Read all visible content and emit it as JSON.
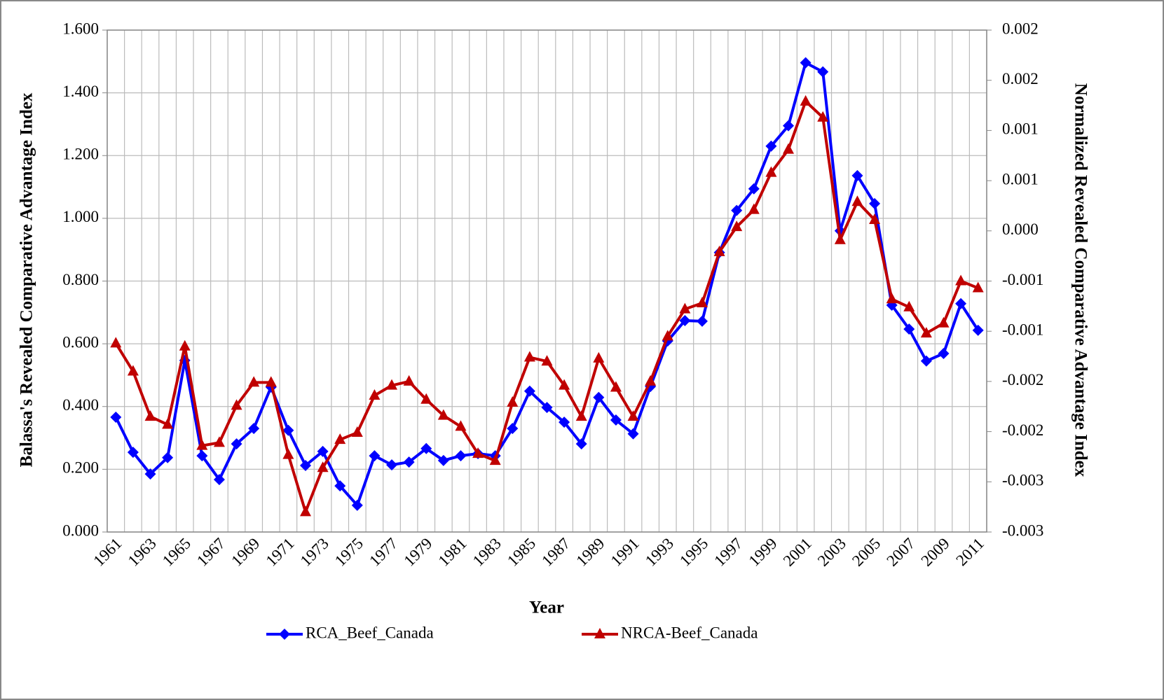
{
  "chart_data": {
    "type": "line",
    "x_label": "Year",
    "y_label": "Balassa's Revealed Comparative Advantage Index",
    "y2_label": "Normalized Revealed Comparative Advantage Index",
    "categories": [
      "1961",
      null,
      "1963",
      null,
      "1965",
      null,
      "1967",
      null,
      "1969",
      null,
      "1971",
      null,
      "1973",
      null,
      "1975",
      null,
      "1977",
      null,
      "1979",
      null,
      "1981",
      null,
      "1983",
      null,
      "1985",
      null,
      "1987",
      null,
      "1989",
      null,
      "1991",
      null,
      "1993",
      null,
      "1995",
      null,
      "1997",
      null,
      "1999",
      null,
      "2001",
      null,
      "2003",
      null,
      "2005",
      null,
      "2007",
      null,
      "2009",
      null,
      "2011"
    ],
    "series": [
      {
        "name": "RCA_Beef_Canada",
        "color": "#0000ff",
        "marker": "diamond",
        "values": [
          0.366,
          0.254,
          0.185,
          0.237,
          0.547,
          0.243,
          0.167,
          0.281,
          0.33,
          0.462,
          0.324,
          0.212,
          0.257,
          0.147,
          0.085,
          0.243,
          0.214,
          0.223,
          0.266,
          0.228,
          0.243,
          0.25,
          0.243,
          0.33,
          0.449,
          0.397,
          0.35,
          0.281,
          0.429,
          0.357,
          0.313,
          0.464,
          0.609,
          0.674,
          0.672,
          0.891,
          1.025,
          1.094,
          1.23,
          1.295,
          1.496,
          1.467,
          0.96,
          1.136,
          1.047,
          0.723,
          0.647,
          0.545,
          0.569,
          0.728,
          0.643
        ]
      },
      {
        "name": "NRCA-Beef_Canada",
        "color": "#c00000",
        "marker": "triangle",
        "axis": "y2",
        "values": [
          -0.00112,
          -0.0014,
          -0.00185,
          -0.00193,
          -0.00115,
          -0.00214,
          -0.00211,
          -0.00174,
          -0.00151,
          -0.00151,
          -0.00223,
          -0.0028,
          -0.00236,
          -0.00208,
          -0.00201,
          -0.00164,
          -0.00154,
          -0.0015,
          -0.00168,
          -0.00184,
          -0.00195,
          -0.00222,
          -0.00229,
          -0.00171,
          -0.00126,
          -0.0013,
          -0.00154,
          -0.00185,
          -0.00127,
          -0.00156,
          -0.00185,
          -0.0015,
          -0.00105,
          -0.00078,
          -0.00072,
          -0.00021,
          4e-05,
          0.00021,
          0.00058,
          0.00081,
          0.00129,
          0.00113,
          -9e-05,
          0.00029,
          0.00011,
          -0.00068,
          -0.00076,
          -0.00102,
          -0.00092,
          -0.0005,
          -0.00057
        ]
      }
    ],
    "ylim": [
      0,
      1.6
    ],
    "yticks": [
      {
        "value": 0,
        "label": "0.000"
      },
      {
        "value": 0.2,
        "label": "0.200"
      },
      {
        "value": 0.4,
        "label": "0.400"
      },
      {
        "value": 0.6,
        "label": "0.600"
      },
      {
        "value": 0.8,
        "label": "0.800"
      },
      {
        "value": 1,
        "label": "1.000"
      },
      {
        "value": 1.2,
        "label": "1.200"
      },
      {
        "value": 1.4,
        "label": "1.400"
      },
      {
        "value": 1.6,
        "label": "1.600"
      }
    ],
    "y2lim": [
      -0.003,
      0.002
    ],
    "y2ticks": [
      {
        "value": -0.003,
        "label": "-0.003"
      },
      {
        "value": -0.0025,
        "label": "-0.003"
      },
      {
        "value": -0.002,
        "label": "-0.002"
      },
      {
        "value": -0.0015,
        "label": "-0.002"
      },
      {
        "value": -0.001,
        "label": "-0.001"
      },
      {
        "value": -0.0005,
        "label": "-0.001"
      },
      {
        "value": 0,
        "label": "0.000"
      },
      {
        "value": 0.0005,
        "label": "0.001"
      },
      {
        "value": 0.001,
        "label": "0.001"
      },
      {
        "value": 0.0015,
        "label": "0.002"
      },
      {
        "value": 0.002,
        "label": "0.002"
      }
    ],
    "grid": true,
    "legend": "bottom"
  }
}
